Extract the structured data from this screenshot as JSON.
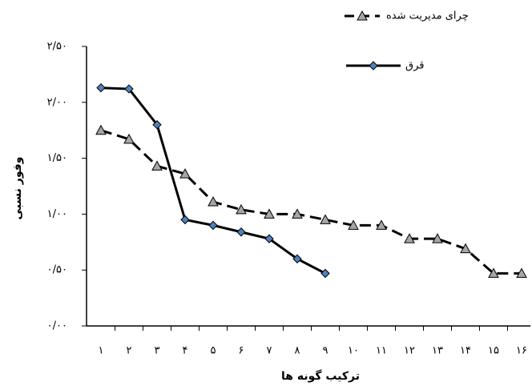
{
  "chart_data": {
    "type": "line",
    "x_label": "ترکیب گونه ها",
    "y_label": "وفور نسبی",
    "categories": [
      "۱",
      "۲",
      "۳",
      "۴",
      "۵",
      "۶",
      "۷",
      "۸",
      "۹",
      "۱۰",
      "۱۱",
      "۱۲",
      "۱۳",
      "۱۴",
      "۱۵",
      "۱۶"
    ],
    "series": [
      {
        "name": "چرای مدیریت شده",
        "color": "#000000",
        "marker_color": "#a6a6a6",
        "marker": "triangle",
        "dashed": true,
        "values": [
          1.75,
          1.67,
          1.43,
          1.36,
          1.11,
          1.04,
          1.0,
          1.0,
          0.95,
          0.9,
          0.9,
          0.78,
          0.78,
          0.69,
          0.47,
          0.47
        ]
      },
      {
        "name": "قرق",
        "color": "#000000",
        "marker_color": "#4f81bd",
        "marker": "diamond",
        "dashed": false,
        "values": [
          2.13,
          2.12,
          1.8,
          0.95,
          0.9,
          0.84,
          0.78,
          0.6,
          0.47,
          null,
          null,
          null,
          null,
          null,
          null,
          null
        ]
      }
    ],
    "ylim": [
      0,
      2.5
    ],
    "yticks": [
      {
        "value": 0,
        "label": "۰/۰۰"
      },
      {
        "value": 0.5,
        "label": "۰/۵۰"
      },
      {
        "value": 1,
        "label": "۱/۰۰"
      },
      {
        "value": 1.5,
        "label": "۱/۵۰"
      },
      {
        "value": 2,
        "label": "۲/۰۰"
      },
      {
        "value": 2.5,
        "label": "۲/۵۰"
      }
    ],
    "grid": false
  }
}
